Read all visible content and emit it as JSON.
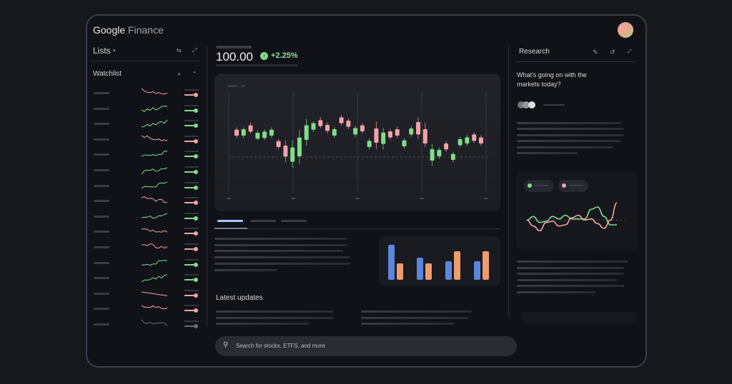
{
  "app": {
    "brand": "Google",
    "brand_suffix": "Finance"
  },
  "colors": {
    "up": "#7fdc8a",
    "down": "#f0a2a8",
    "neutral": "#6a6d75",
    "accent": "#a8c7fa",
    "bar_blue": "#5b86db",
    "bar_orange": "#ee9b6e"
  },
  "lists": {
    "title": "Lists",
    "dropdown_icon": "caret-down-icon",
    "watchlist_label": "Watchlist",
    "rows": [
      "down",
      "up",
      "up",
      "down",
      "up",
      "up",
      "up",
      "down",
      "up",
      "down",
      "down",
      "up",
      "up",
      "down",
      "down",
      "neutral"
    ]
  },
  "quote": {
    "price": "100.00",
    "change": "+2.25%",
    "direction": "up"
  },
  "research": {
    "title": "Research",
    "question": "What's going on with the markets today?"
  },
  "main": {
    "latest_updates": "Latest updates"
  },
  "search": {
    "placeholder": "Search for stocks, ETFS, and more"
  },
  "chart_data": [
    {
      "type": "candlestick",
      "reference_line": 40,
      "ylim": [
        20,
        80
      ],
      "candles_ohlc": [
        [
          59.2,
          60.8,
          53.3,
          55.0
        ],
        [
          55.0,
          60.8,
          53.3,
          59.5
        ],
        [
          62.2,
          64.2,
          56.3,
          57.8
        ],
        [
          52.8,
          58.7,
          51.7,
          57.0
        ],
        [
          53.3,
          59.5,
          52.0,
          57.8
        ],
        [
          55.0,
          60.8,
          53.3,
          59.2
        ],
        [
          51.2,
          52.8,
          45.3,
          47.0
        ],
        [
          48.0,
          51.7,
          36.3,
          40.3
        ],
        [
          36.7,
          51.7,
          32.5,
          46.7
        ],
        [
          40.5,
          59.2,
          35.3,
          53.7
        ],
        [
          52.0,
          66.7,
          48.0,
          62.3
        ],
        [
          59.2,
          65.0,
          57.5,
          63.7
        ],
        [
          65.8,
          68.0,
          60.0,
          61.7
        ],
        [
          62.5,
          64.2,
          56.3,
          58.3
        ],
        [
          55.0,
          60.8,
          53.3,
          59.5
        ],
        [
          67.8,
          69.5,
          62.0,
          63.7
        ],
        [
          65.5,
          67.2,
          59.5,
          61.2
        ],
        [
          55.8,
          62.0,
          54.2,
          60.3
        ],
        [
          62.2,
          63.8,
          56.3,
          58.0
        ],
        [
          47.0,
          53.0,
          45.3,
          51.3
        ],
        [
          60.0,
          64.7,
          45.3,
          50.0
        ],
        [
          49.2,
          60.5,
          45.3,
          57.2
        ],
        [
          58.0,
          59.7,
          52.0,
          53.7
        ],
        [
          59.5,
          61.2,
          53.3,
          55.0
        ],
        [
          47.5,
          53.3,
          45.8,
          51.7
        ],
        [
          55.8,
          61.7,
          54.2,
          60.0
        ],
        [
          64.5,
          68.0,
          52.5,
          55.8
        ],
        [
          59.5,
          64.2,
          47.0,
          49.5
        ],
        [
          37.5,
          49.2,
          33.7,
          45.5
        ],
        [
          40.5,
          46.7,
          38.8,
          45.0
        ],
        [
          49.5,
          51.2,
          43.7,
          45.3
        ],
        [
          38.0,
          43.8,
          36.3,
          42.2
        ],
        [
          48.3,
          54.2,
          46.7,
          52.5
        ],
        [
          49.5,
          55.5,
          47.8,
          53.8
        ],
        [
          55.8,
          57.5,
          49.7,
          51.3
        ],
        [
          53.7,
          55.3,
          47.8,
          49.5
        ]
      ]
    },
    {
      "type": "bar",
      "groups": 4,
      "series": [
        {
          "color": "blue",
          "values": [
            49,
            31,
            26,
            26
          ]
        },
        {
          "color": "orange",
          "values": [
            23,
            23,
            40,
            40
          ]
        }
      ]
    },
    {
      "type": "line",
      "reference_line": 5.5,
      "series": [
        {
          "color": "green",
          "values": [
            5.5,
            7,
            4.5,
            5,
            7,
            6,
            7.5,
            6,
            6,
            6,
            10,
            11,
            7,
            3.5,
            3.5
          ]
        },
        {
          "color": "pink",
          "values": [
            5.5,
            3,
            1,
            4.5,
            5,
            3,
            3.5,
            6.5,
            7.5,
            5.5,
            6,
            4,
            2,
            5.5,
            12.8
          ]
        }
      ]
    }
  ]
}
